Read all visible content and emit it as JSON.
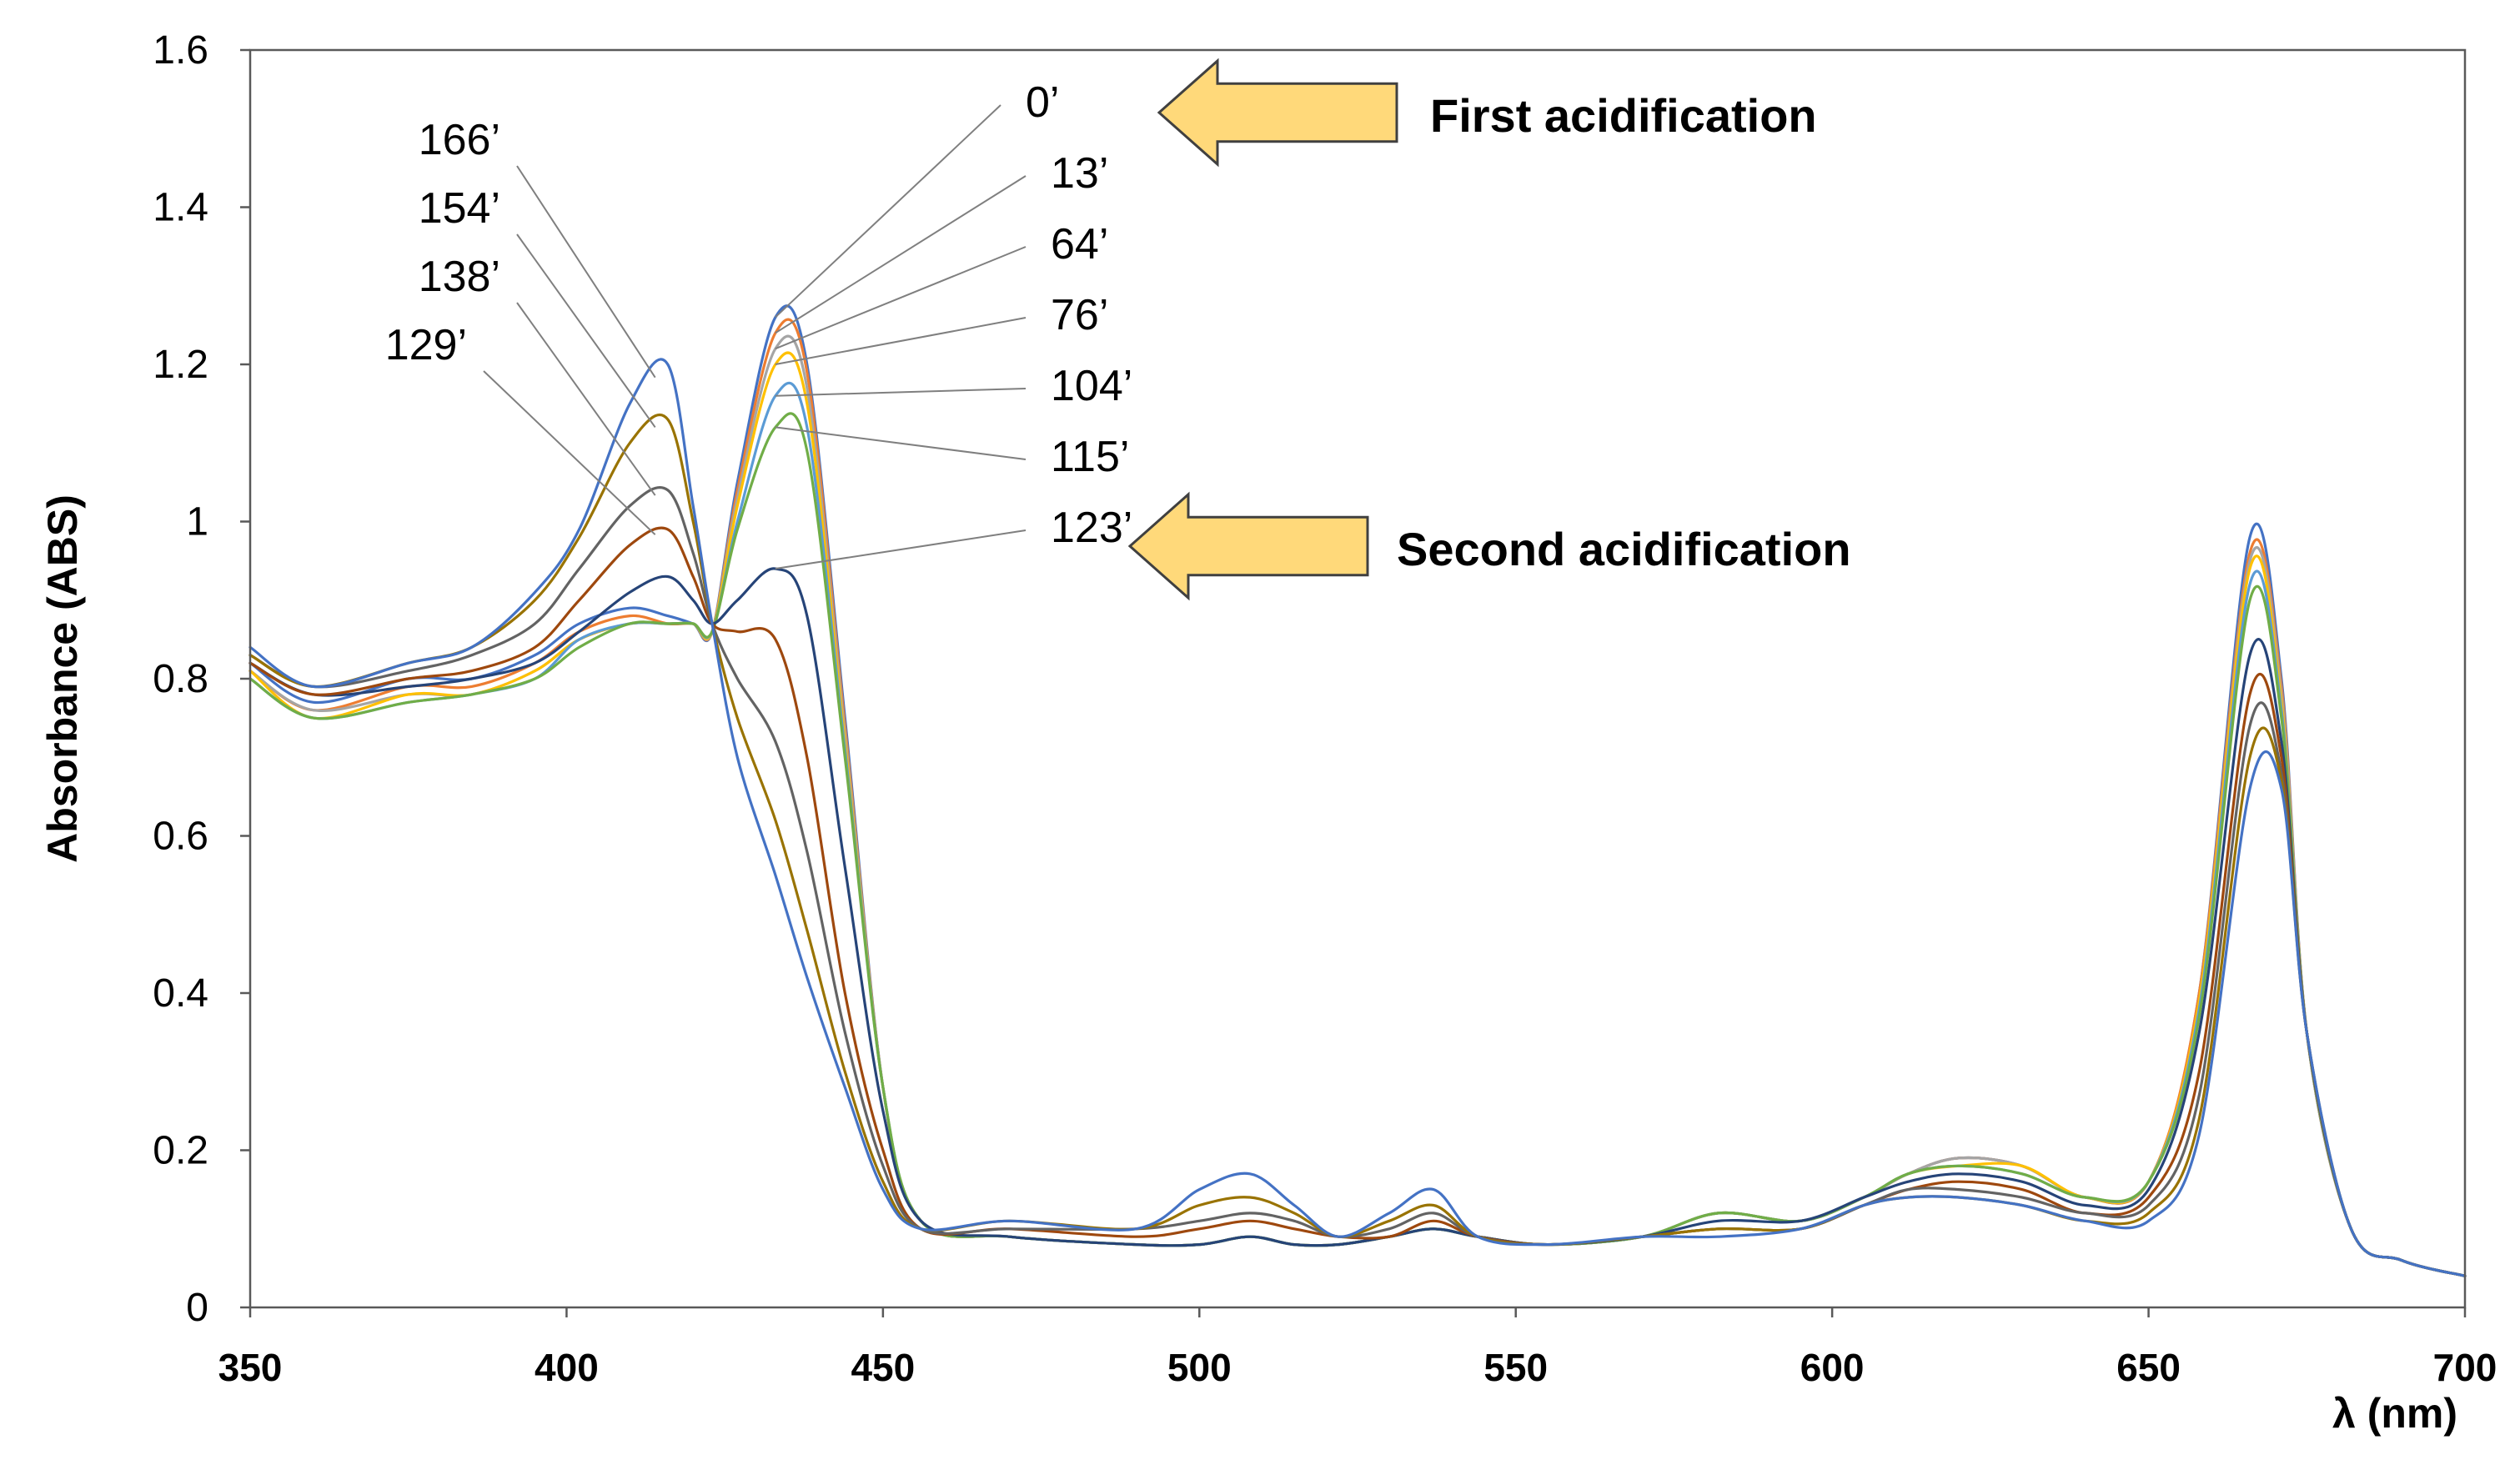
{
  "chart_data": {
    "type": "line",
    "title": "",
    "xlabel": "λ (nm)",
    "ylabel": "Absorbance (ABS)",
    "xlim": [
      350,
      700
    ],
    "ylim": [
      0,
      1.6
    ],
    "x_ticks": [
      "350",
      "400",
      "450",
      "500",
      "550",
      "600",
      "650",
      "700"
    ],
    "y_ticks": [
      "0",
      "0.2",
      "0.4",
      "0.6",
      "0.8",
      "1",
      "1.2",
      "1.4",
      "1.6"
    ],
    "grid": false,
    "legend": "none",
    "time_labels": [
      {
        "text": "0’",
        "side": "right"
      },
      {
        "text": "13’",
        "side": "right"
      },
      {
        "text": "64’",
        "side": "right"
      },
      {
        "text": "76’",
        "side": "right"
      },
      {
        "text": "104’",
        "side": "right"
      },
      {
        "text": "115’",
        "side": "right"
      },
      {
        "text": "123’",
        "side": "right"
      },
      {
        "text": "166’",
        "side": "left"
      },
      {
        "text": "154’",
        "side": "left"
      },
      {
        "text": "138’",
        "side": "left"
      },
      {
        "text": "129’",
        "side": "left"
      }
    ],
    "annotations": [
      {
        "text": "First acidification",
        "type": "arrow-left"
      },
      {
        "text": "Second acidification",
        "type": "arrow-left"
      }
    ],
    "series_colors": [
      "#4472c4",
      "#ed7d31",
      "#a5a5a5",
      "#ffc000",
      "#5b9bd5",
      "#70ad47",
      "#264478",
      "#9e480e",
      "#636363",
      "#997300"
    ],
    "series": [
      {
        "name": "0’",
        "x": [
          350,
          360,
          375,
          385,
          395,
          402,
          410,
          416,
          420,
          423,
          427,
          433,
          438,
          444,
          450,
          456,
          470,
          490,
          500,
          508,
          515,
          522,
          530,
          537,
          544,
          555,
          570,
          582,
          595,
          605,
          612,
          620,
          630,
          640,
          650,
          658,
          666,
          671,
          675,
          682,
          690,
          700
        ],
        "values": [
          0.82,
          0.77,
          0.8,
          0.8,
          0.83,
          0.87,
          0.89,
          0.88,
          0.87,
          0.86,
          1.05,
          1.26,
          1.2,
          0.75,
          0.28,
          0.11,
          0.09,
          0.08,
          0.08,
          0.09,
          0.08,
          0.08,
          0.09,
          0.1,
          0.09,
          0.08,
          0.09,
          0.12,
          0.11,
          0.14,
          0.17,
          0.19,
          0.18,
          0.14,
          0.16,
          0.4,
          0.98,
          0.8,
          0.35,
          0.1,
          0.06,
          0.04
        ]
      },
      {
        "name": "13’",
        "x": [
          350,
          360,
          375,
          385,
          395,
          402,
          410,
          416,
          420,
          423,
          427,
          433,
          438,
          444,
          450,
          456,
          470,
          490,
          500,
          508,
          515,
          522,
          530,
          537,
          544,
          555,
          570,
          582,
          595,
          605,
          612,
          620,
          630,
          640,
          650,
          658,
          666,
          671,
          675,
          682,
          690,
          700
        ],
        "values": [
          0.81,
          0.76,
          0.79,
          0.79,
          0.82,
          0.86,
          0.88,
          0.87,
          0.87,
          0.86,
          1.04,
          1.24,
          1.19,
          0.74,
          0.28,
          0.11,
          0.09,
          0.08,
          0.08,
          0.09,
          0.08,
          0.08,
          0.09,
          0.1,
          0.09,
          0.08,
          0.09,
          0.12,
          0.11,
          0.14,
          0.17,
          0.19,
          0.18,
          0.14,
          0.16,
          0.4,
          0.96,
          0.79,
          0.35,
          0.1,
          0.06,
          0.04
        ]
      },
      {
        "name": "64’",
        "x": [
          350,
          360,
          375,
          385,
          395,
          402,
          410,
          416,
          420,
          423,
          427,
          433,
          438,
          444,
          450,
          456,
          470,
          490,
          500,
          508,
          515,
          522,
          530,
          537,
          544,
          555,
          570,
          582,
          595,
          605,
          612,
          620,
          630,
          640,
          650,
          658,
          666,
          671,
          675,
          682,
          690,
          700
        ],
        "values": [
          0.81,
          0.76,
          0.78,
          0.78,
          0.81,
          0.85,
          0.87,
          0.87,
          0.87,
          0.86,
          1.03,
          1.22,
          1.17,
          0.73,
          0.28,
          0.11,
          0.09,
          0.08,
          0.08,
          0.09,
          0.08,
          0.08,
          0.09,
          0.1,
          0.09,
          0.08,
          0.09,
          0.12,
          0.11,
          0.14,
          0.17,
          0.19,
          0.18,
          0.14,
          0.16,
          0.39,
          0.95,
          0.78,
          0.35,
          0.1,
          0.06,
          0.04
        ]
      },
      {
        "name": "76’",
        "x": [
          350,
          360,
          375,
          385,
          395,
          402,
          410,
          416,
          420,
          423,
          427,
          433,
          438,
          444,
          450,
          456,
          470,
          490,
          500,
          508,
          515,
          522,
          530,
          537,
          544,
          555,
          570,
          582,
          595,
          605,
          612,
          620,
          630,
          640,
          650,
          658,
          666,
          671,
          675,
          682,
          690,
          700
        ],
        "values": [
          0.81,
          0.75,
          0.78,
          0.78,
          0.81,
          0.85,
          0.87,
          0.87,
          0.87,
          0.86,
          1.02,
          1.2,
          1.15,
          0.72,
          0.28,
          0.11,
          0.09,
          0.08,
          0.08,
          0.09,
          0.08,
          0.08,
          0.09,
          0.1,
          0.09,
          0.08,
          0.09,
          0.12,
          0.11,
          0.14,
          0.17,
          0.18,
          0.18,
          0.14,
          0.16,
          0.39,
          0.94,
          0.77,
          0.35,
          0.1,
          0.06,
          0.04
        ]
      },
      {
        "name": "104’",
        "x": [
          350,
          360,
          375,
          385,
          395,
          402,
          410,
          416,
          420,
          423,
          427,
          433,
          438,
          444,
          450,
          456,
          470,
          490,
          500,
          508,
          515,
          522,
          530,
          537,
          544,
          555,
          570,
          582,
          595,
          605,
          612,
          620,
          630,
          640,
          650,
          658,
          666,
          671,
          675,
          682,
          690,
          700
        ],
        "values": [
          0.8,
          0.75,
          0.77,
          0.78,
          0.8,
          0.85,
          0.87,
          0.87,
          0.87,
          0.86,
          1.0,
          1.16,
          1.12,
          0.71,
          0.28,
          0.11,
          0.09,
          0.08,
          0.08,
          0.09,
          0.08,
          0.08,
          0.09,
          0.1,
          0.09,
          0.08,
          0.09,
          0.12,
          0.11,
          0.14,
          0.17,
          0.18,
          0.17,
          0.14,
          0.16,
          0.38,
          0.92,
          0.76,
          0.35,
          0.1,
          0.06,
          0.04
        ]
      },
      {
        "name": "115’",
        "x": [
          350,
          360,
          375,
          385,
          395,
          402,
          410,
          416,
          420,
          423,
          427,
          433,
          438,
          444,
          450,
          456,
          470,
          490,
          500,
          508,
          515,
          522,
          530,
          537,
          544,
          555,
          570,
          582,
          595,
          605,
          612,
          620,
          630,
          640,
          650,
          658,
          666,
          671,
          675,
          682,
          690,
          700
        ],
        "values": [
          0.8,
          0.75,
          0.77,
          0.78,
          0.8,
          0.84,
          0.87,
          0.87,
          0.87,
          0.86,
          0.99,
          1.12,
          1.09,
          0.7,
          0.28,
          0.11,
          0.09,
          0.08,
          0.08,
          0.09,
          0.08,
          0.08,
          0.09,
          0.1,
          0.09,
          0.08,
          0.09,
          0.12,
          0.11,
          0.14,
          0.17,
          0.18,
          0.17,
          0.14,
          0.16,
          0.37,
          0.9,
          0.75,
          0.35,
          0.1,
          0.06,
          0.04
        ]
      },
      {
        "name": "123’",
        "x": [
          350,
          360,
          375,
          385,
          395,
          402,
          410,
          416,
          420,
          423,
          427,
          433,
          438,
          444,
          450,
          456,
          470,
          490,
          500,
          508,
          515,
          522,
          530,
          537,
          544,
          555,
          570,
          582,
          595,
          605,
          612,
          620,
          630,
          640,
          650,
          658,
          666,
          671,
          675,
          682,
          690,
          700
        ],
        "values": [
          0.82,
          0.78,
          0.79,
          0.8,
          0.82,
          0.86,
          0.91,
          0.93,
          0.9,
          0.87,
          0.9,
          0.94,
          0.88,
          0.56,
          0.25,
          0.11,
          0.09,
          0.08,
          0.08,
          0.09,
          0.08,
          0.08,
          0.09,
          0.1,
          0.09,
          0.08,
          0.09,
          0.11,
          0.11,
          0.14,
          0.16,
          0.17,
          0.16,
          0.13,
          0.15,
          0.35,
          0.83,
          0.72,
          0.35,
          0.1,
          0.06,
          0.04
        ]
      },
      {
        "name": "129’",
        "x": [
          350,
          360,
          375,
          385,
          395,
          402,
          410,
          416,
          420,
          423,
          427,
          433,
          438,
          444,
          450,
          456,
          470,
          490,
          500,
          508,
          515,
          522,
          530,
          537,
          544,
          555,
          570,
          582,
          595,
          605,
          612,
          620,
          630,
          640,
          650,
          658,
          666,
          671,
          675,
          682,
          690,
          700
        ],
        "values": [
          0.82,
          0.78,
          0.8,
          0.81,
          0.84,
          0.9,
          0.97,
          0.99,
          0.93,
          0.87,
          0.86,
          0.85,
          0.7,
          0.4,
          0.2,
          0.1,
          0.1,
          0.09,
          0.1,
          0.11,
          0.1,
          0.09,
          0.09,
          0.11,
          0.09,
          0.08,
          0.09,
          0.1,
          0.1,
          0.13,
          0.15,
          0.16,
          0.15,
          0.12,
          0.14,
          0.3,
          0.78,
          0.7,
          0.35,
          0.1,
          0.06,
          0.04
        ]
      },
      {
        "name": "138’",
        "x": [
          350,
          360,
          375,
          385,
          395,
          402,
          410,
          416,
          420,
          423,
          427,
          433,
          438,
          444,
          450,
          456,
          470,
          490,
          500,
          508,
          515,
          522,
          530,
          537,
          544,
          555,
          570,
          582,
          595,
          605,
          612,
          620,
          630,
          640,
          650,
          658,
          666,
          671,
          675,
          682,
          690,
          700
        ],
        "values": [
          0.83,
          0.79,
          0.81,
          0.83,
          0.87,
          0.94,
          1.02,
          1.04,
          0.96,
          0.87,
          0.8,
          0.72,
          0.58,
          0.35,
          0.18,
          0.1,
          0.1,
          0.1,
          0.11,
          0.12,
          0.11,
          0.09,
          0.1,
          0.12,
          0.09,
          0.08,
          0.09,
          0.1,
          0.1,
          0.13,
          0.15,
          0.15,
          0.14,
          0.12,
          0.13,
          0.27,
          0.74,
          0.68,
          0.35,
          0.1,
          0.06,
          0.04
        ]
      },
      {
        "name": "154’",
        "x": [
          350,
          360,
          375,
          385,
          395,
          402,
          410,
          416,
          420,
          423,
          427,
          433,
          438,
          444,
          450,
          456,
          470,
          490,
          500,
          508,
          515,
          522,
          530,
          537,
          544,
          555,
          570,
          582,
          595,
          605,
          612,
          620,
          630,
          640,
          650,
          658,
          666,
          671,
          675,
          682,
          690,
          700
        ],
        "values": [
          0.83,
          0.79,
          0.82,
          0.84,
          0.9,
          0.98,
          1.1,
          1.13,
          1.0,
          0.87,
          0.75,
          0.62,
          0.48,
          0.3,
          0.16,
          0.1,
          0.11,
          0.1,
          0.13,
          0.14,
          0.12,
          0.09,
          0.11,
          0.13,
          0.09,
          0.08,
          0.09,
          0.1,
          0.1,
          0.13,
          0.14,
          0.14,
          0.13,
          0.11,
          0.12,
          0.24,
          0.7,
          0.67,
          0.35,
          0.1,
          0.06,
          0.04
        ]
      },
      {
        "name": "166’",
        "x": [
          350,
          360,
          375,
          385,
          395,
          402,
          410,
          416,
          420,
          423,
          427,
          433,
          438,
          444,
          450,
          456,
          470,
          490,
          500,
          508,
          515,
          522,
          530,
          537,
          544,
          555,
          570,
          582,
          595,
          605,
          612,
          620,
          630,
          640,
          650,
          658,
          666,
          671,
          675,
          682,
          690,
          700
        ],
        "values": [
          0.84,
          0.79,
          0.82,
          0.84,
          0.91,
          0.99,
          1.15,
          1.2,
          1.02,
          0.87,
          0.7,
          0.55,
          0.42,
          0.28,
          0.15,
          0.1,
          0.11,
          0.1,
          0.15,
          0.17,
          0.13,
          0.09,
          0.12,
          0.15,
          0.09,
          0.08,
          0.09,
          0.09,
          0.1,
          0.13,
          0.14,
          0.14,
          0.13,
          0.11,
          0.11,
          0.22,
          0.66,
          0.66,
          0.35,
          0.1,
          0.06,
          0.04
        ]
      }
    ]
  }
}
